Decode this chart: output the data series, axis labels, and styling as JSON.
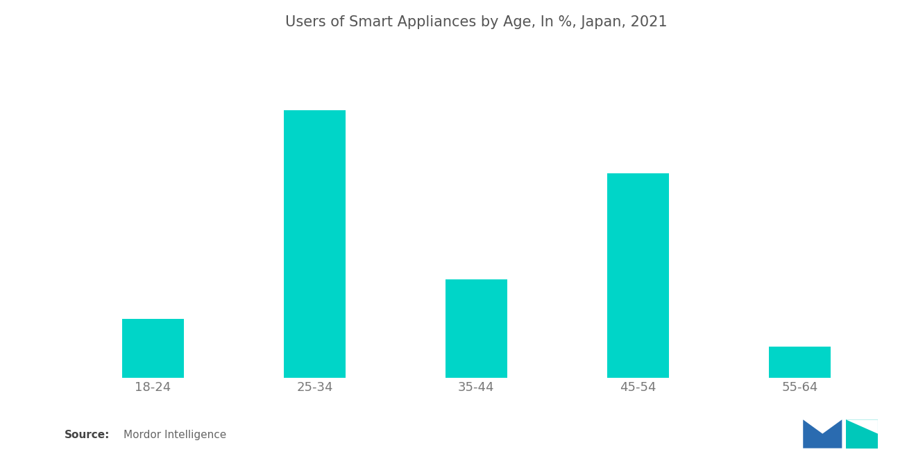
{
  "title": "Users of Smart Appliances by Age, In %, Japan, 2021",
  "categories": [
    "18-24",
    "25-34",
    "35-44",
    "45-54",
    "55-64"
  ],
  "values": [
    15,
    68,
    25,
    52,
    8
  ],
  "bar_color": "#00D5C8",
  "background_color": "#ffffff",
  "title_color": "#555555",
  "tick_color": "#777777",
  "source_bold": "Source:",
  "source_text": "Mordor Intelligence",
  "source_color": "#666666",
  "title_fontsize": 15,
  "tick_fontsize": 13,
  "source_fontsize": 11,
  "bar_width": 0.38,
  "ylim": [
    0,
    82
  ],
  "xlim_left": -0.55,
  "xlim_right": 4.55
}
